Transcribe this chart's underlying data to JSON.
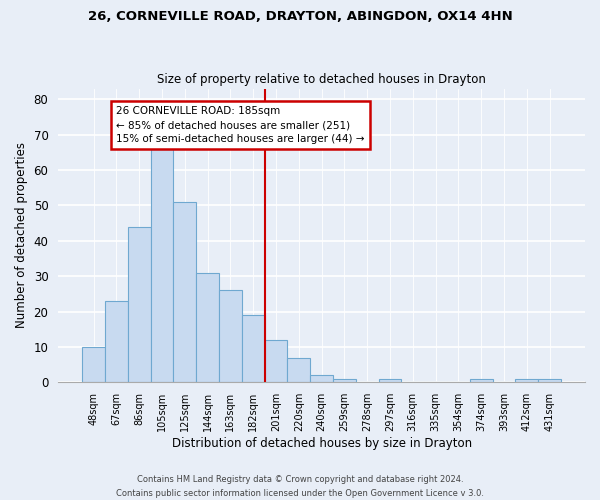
{
  "title": "26, CORNEVILLE ROAD, DRAYTON, ABINGDON, OX14 4HN",
  "subtitle": "Size of property relative to detached houses in Drayton",
  "xlabel": "Distribution of detached houses by size in Drayton",
  "ylabel": "Number of detached properties",
  "bar_labels": [
    "48sqm",
    "67sqm",
    "86sqm",
    "105sqm",
    "125sqm",
    "144sqm",
    "163sqm",
    "182sqm",
    "201sqm",
    "220sqm",
    "240sqm",
    "259sqm",
    "278sqm",
    "297sqm",
    "316sqm",
    "335sqm",
    "354sqm",
    "374sqm",
    "393sqm",
    "412sqm",
    "431sqm"
  ],
  "bar_values": [
    10,
    23,
    44,
    66,
    51,
    31,
    26,
    19,
    12,
    7,
    2,
    1,
    0,
    1,
    0,
    0,
    0,
    1,
    0,
    1,
    1
  ],
  "bar_color": "#c8daf0",
  "bar_edge_color": "#6fa8d0",
  "ref_line_index": 7.5,
  "ref_line_color": "#cc0000",
  "annotation_text": "26 CORNEVILLE ROAD: 185sqm\n← 85% of detached houses are smaller (251)\n15% of semi-detached houses are larger (44) →",
  "annotation_box_color": "#ffffff",
  "annotation_box_edge": "#cc0000",
  "footer1": "Contains HM Land Registry data © Crown copyright and database right 2024.",
  "footer2": "Contains public sector information licensed under the Open Government Licence v 3.0.",
  "ylim": [
    0,
    83
  ],
  "yticks": [
    0,
    10,
    20,
    30,
    40,
    50,
    60,
    70,
    80
  ],
  "background_color": "#e8eef7"
}
